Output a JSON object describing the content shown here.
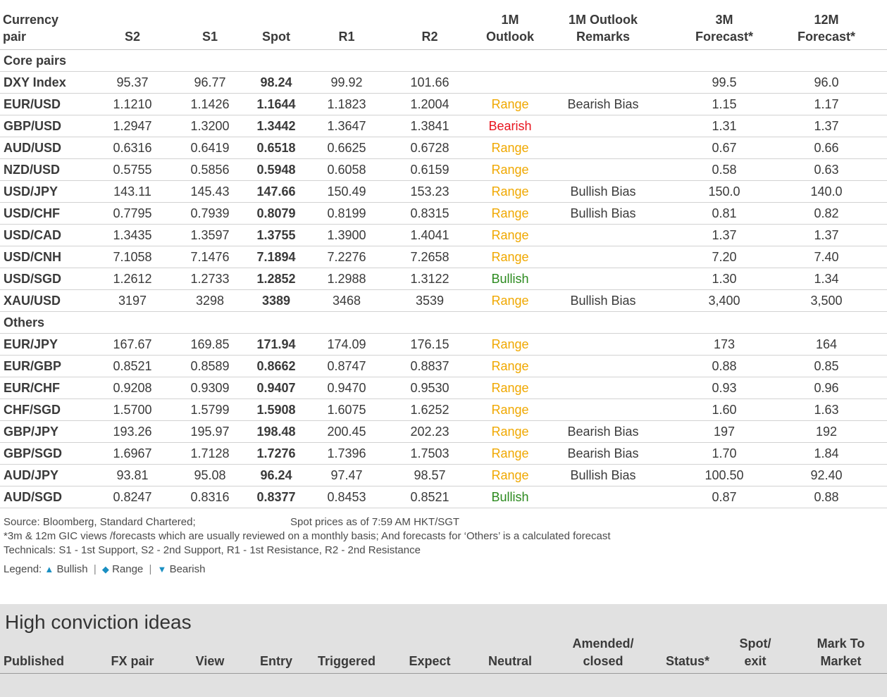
{
  "table": {
    "headers": {
      "pair": [
        "Currency",
        "pair"
      ],
      "s2": "S2",
      "s1": "S1",
      "spot": "Spot",
      "r1": "R1",
      "r2": "R2",
      "outlook": [
        "1M",
        "Outlook"
      ],
      "remarks": [
        "1M Outlook",
        "Remarks"
      ],
      "f3m": [
        "3M",
        "Forecast*"
      ],
      "f12m": [
        "12M",
        "Forecast*"
      ]
    },
    "sections": [
      {
        "title": "Core pairs",
        "rows": [
          {
            "pair": "DXY Index",
            "s2": "95.37",
            "s1": "96.77",
            "spot": "98.24",
            "r1": "99.92",
            "r2": "101.66",
            "outlook": "",
            "remarks": "",
            "f3m": "99.5",
            "f12m": "96.0"
          },
          {
            "pair": "EUR/USD",
            "s2": "1.1210",
            "s1": "1.1426",
            "spot": "1.1644",
            "r1": "1.1823",
            "r2": "1.2004",
            "outlook": "Range",
            "remarks": "Bearish Bias",
            "f3m": "1.15",
            "f12m": "1.17"
          },
          {
            "pair": "GBP/USD",
            "s2": "1.2947",
            "s1": "1.3200",
            "spot": "1.3442",
            "r1": "1.3647",
            "r2": "1.3841",
            "outlook": "Bearish",
            "remarks": "",
            "f3m": "1.31",
            "f12m": "1.37"
          },
          {
            "pair": "AUD/USD",
            "s2": "0.6316",
            "s1": "0.6419",
            "spot": "0.6518",
            "r1": "0.6625",
            "r2": "0.6728",
            "outlook": "Range",
            "remarks": "",
            "f3m": "0.67",
            "f12m": "0.66"
          },
          {
            "pair": "NZD/USD",
            "s2": "0.5755",
            "s1": "0.5856",
            "spot": "0.5948",
            "r1": "0.6058",
            "r2": "0.6159",
            "outlook": "Range",
            "remarks": "",
            "f3m": "0.58",
            "f12m": "0.63"
          },
          {
            "pair": "USD/JPY",
            "s2": "143.11",
            "s1": "145.43",
            "spot": "147.66",
            "r1": "150.49",
            "r2": "153.23",
            "outlook": "Range",
            "remarks": "Bullish Bias",
            "f3m": "150.0",
            "f12m": "140.0"
          },
          {
            "pair": "USD/CHF",
            "s2": "0.7795",
            "s1": "0.7939",
            "spot": "0.8079",
            "r1": "0.8199",
            "r2": "0.8315",
            "outlook": "Range",
            "remarks": "Bullish Bias",
            "f3m": "0.81",
            "f12m": "0.82"
          },
          {
            "pair": "USD/CAD",
            "s2": "1.3435",
            "s1": "1.3597",
            "spot": "1.3755",
            "r1": "1.3900",
            "r2": "1.4041",
            "outlook": "Range",
            "remarks": "",
            "f3m": "1.37",
            "f12m": "1.37"
          },
          {
            "pair": "USD/CNH",
            "s2": "7.1058",
            "s1": "7.1476",
            "spot": "7.1894",
            "r1": "7.2276",
            "r2": "7.2658",
            "outlook": "Range",
            "remarks": "",
            "f3m": "7.20",
            "f12m": "7.40"
          },
          {
            "pair": "USD/SGD",
            "s2": "1.2612",
            "s1": "1.2733",
            "spot": "1.2852",
            "r1": "1.2988",
            "r2": "1.3122",
            "outlook": "Bullish",
            "remarks": "",
            "f3m": "1.30",
            "f12m": "1.34"
          },
          {
            "pair": "XAU/USD",
            "s2": "3197",
            "s1": "3298",
            "spot": "3389",
            "r1": "3468",
            "r2": "3539",
            "outlook": "Range",
            "remarks": "Bullish Bias",
            "f3m": "3,400",
            "f12m": "3,500"
          }
        ]
      },
      {
        "title": "Others",
        "rows": [
          {
            "pair": "EUR/JPY",
            "s2": "167.67",
            "s1": "169.85",
            "spot": "171.94",
            "r1": "174.09",
            "r2": "176.15",
            "outlook": "Range",
            "remarks": "",
            "f3m": "173",
            "f12m": "164"
          },
          {
            "pair": "EUR/GBP",
            "s2": "0.8521",
            "s1": "0.8589",
            "spot": "0.8662",
            "r1": "0.8747",
            "r2": "0.8837",
            "outlook": "Range",
            "remarks": "",
            "f3m": "0.88",
            "f12m": "0.85"
          },
          {
            "pair": "EUR/CHF",
            "s2": "0.9208",
            "s1": "0.9309",
            "spot": "0.9407",
            "r1": "0.9470",
            "r2": "0.9530",
            "outlook": "Range",
            "remarks": "",
            "f3m": "0.93",
            "f12m": "0.96"
          },
          {
            "pair": "CHF/SGD",
            "s2": "1.5700",
            "s1": "1.5799",
            "spot": "1.5908",
            "r1": "1.6075",
            "r2": "1.6252",
            "outlook": "Range",
            "remarks": "",
            "f3m": "1.60",
            "f12m": "1.63"
          },
          {
            "pair": "GBP/JPY",
            "s2": "193.26",
            "s1": "195.97",
            "spot": "198.48",
            "r1": "200.45",
            "r2": "202.23",
            "outlook": "Range",
            "remarks": "Bearish Bias",
            "f3m": "197",
            "f12m": "192"
          },
          {
            "pair": "GBP/SGD",
            "s2": "1.6967",
            "s1": "1.7128",
            "spot": "1.7276",
            "r1": "1.7396",
            "r2": "1.7503",
            "outlook": "Range",
            "remarks": "Bearish Bias",
            "f3m": "1.70",
            "f12m": "1.84"
          },
          {
            "pair": "AUD/JPY",
            "s2": "93.81",
            "s1": "95.08",
            "spot": "96.24",
            "r1": "97.47",
            "r2": "98.57",
            "outlook": "Range",
            "remarks": "Bullish Bias",
            "f3m": "100.50",
            "f12m": "92.40"
          },
          {
            "pair": "AUD/SGD",
            "s2": "0.8247",
            "s1": "0.8316",
            "spot": "0.8377",
            "r1": "0.8453",
            "r2": "0.8521",
            "outlook": "Bullish",
            "remarks": "",
            "f3m": "0.87",
            "f12m": "0.88"
          }
        ]
      }
    ]
  },
  "notes": {
    "source": "Source: Bloomberg, Standard Chartered;",
    "spot_time": "Spot prices as of  7:59 AM HKT/SGT",
    "forecast_note": "*3m & 12m GIC views /forecasts which are usually reviewed on a monthly basis; And forecasts for ‘Others’ is a calculated forecast",
    "technicals": "Technicals: S1 - 1st Support, S2 - 2nd Support, R1 - 1st Resistance, R2 - 2nd Resistance"
  },
  "legend": {
    "label": "Legend:",
    "items": [
      {
        "symbol": "▲",
        "text": "Bullish"
      },
      {
        "symbol": "◆",
        "text": "Range"
      },
      {
        "symbol": "▼",
        "text": "Bearish"
      }
    ]
  },
  "high_conviction": {
    "title": "High conviction ideas",
    "headers": [
      [
        "Published"
      ],
      [
        "FX pair"
      ],
      [
        "View"
      ],
      [
        "Entry"
      ],
      [
        "Triggered"
      ],
      [
        "Expect"
      ],
      [
        "Neutral"
      ],
      [
        "Amended/",
        "closed"
      ],
      [
        "Status*"
      ],
      [
        "Spot/",
        "exit"
      ],
      [
        "Mark To",
        "Market"
      ]
    ]
  },
  "colors": {
    "range": "#f0a800",
    "bearish": "#e8141e",
    "bullish": "#2b8a1e",
    "legend_symbol": "#1a8fc2",
    "hci_background": "#e1e1e1"
  }
}
